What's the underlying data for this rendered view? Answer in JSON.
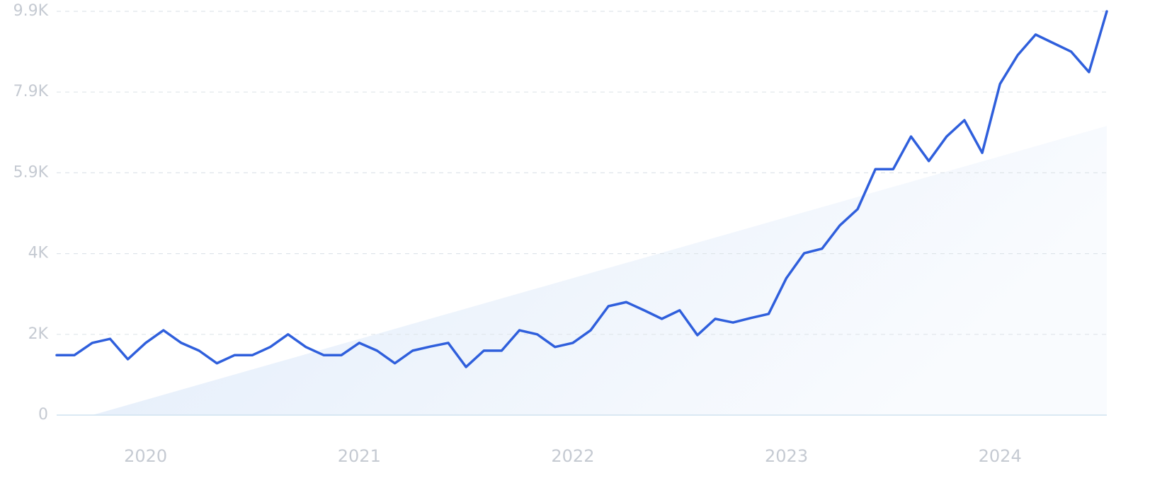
{
  "chart_data": {
    "type": "line",
    "x": [
      "2019-08",
      "2019-09",
      "2019-10",
      "2019-11",
      "2019-12",
      "2020-01",
      "2020-02",
      "2020-03",
      "2020-04",
      "2020-05",
      "2020-06",
      "2020-07",
      "2020-08",
      "2020-09",
      "2020-10",
      "2020-11",
      "2020-12",
      "2021-01",
      "2021-02",
      "2021-03",
      "2021-04",
      "2021-05",
      "2021-06",
      "2021-07",
      "2021-08",
      "2021-09",
      "2021-10",
      "2021-11",
      "2021-12",
      "2022-01",
      "2022-02",
      "2022-03",
      "2022-04",
      "2022-05",
      "2022-06",
      "2022-07",
      "2022-08",
      "2022-09",
      "2022-10",
      "2022-11",
      "2022-12",
      "2023-01",
      "2023-02",
      "2023-03",
      "2023-04",
      "2023-05",
      "2023-06",
      "2023-07",
      "2023-08",
      "2023-09",
      "2023-10",
      "2023-11",
      "2023-12",
      "2024-01",
      "2024-02",
      "2024-03",
      "2024-04",
      "2024-05",
      "2024-06",
      "2024-07"
    ],
    "series": [
      {
        "color": "#2f5fdc",
        "values": [
          1470,
          1470,
          1770,
          1870,
          1370,
          1770,
          2080,
          1770,
          1580,
          1270,
          1470,
          1470,
          1670,
          1980,
          1670,
          1470,
          1470,
          1770,
          1580,
          1270,
          1580,
          1680,
          1770,
          1180,
          1580,
          1580,
          2080,
          1980,
          1670,
          1770,
          2080,
          2670,
          2770,
          2570,
          2360,
          2570,
          1960,
          2360,
          2270,
          2380,
          2480,
          3360,
          3970,
          4080,
          4650,
          5050,
          6030,
          6030,
          6830,
          6230,
          6830,
          7230,
          6430,
          8120,
          8830,
          9330,
          9120,
          8910,
          8410,
          9900
        ]
      }
    ],
    "trend": {
      "x": [
        "2019-10",
        "2024-07"
      ],
      "values": [
        0,
        7090
      ]
    },
    "ylim": [
      0,
      9900
    ],
    "yticks": [
      0,
      {
        "value": 1980,
        "label": "2K"
      },
      {
        "value": 3960,
        "label": "4K"
      },
      {
        "value": 5940,
        "label": "5.9K"
      },
      {
        "value": 7920,
        "label": "7.9K"
      },
      {
        "value": 9900,
        "label": "9.9K"
      }
    ],
    "xticks": [
      "2020",
      "2021",
      "2022",
      "2023",
      "2024"
    ],
    "grid": true
  }
}
